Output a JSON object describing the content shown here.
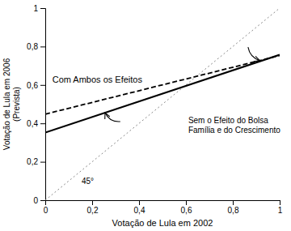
{
  "chart_data": {
    "type": "line",
    "xlabel": "Votação de Lula em 2002",
    "ylabel": "Votação de Lula em 2006\n(Prevista)",
    "x": [
      0,
      1
    ],
    "series": [
      {
        "color": "#888888",
        "line_style": "dotted",
        "values": [
          0,
          1
        ]
      },
      {
        "color": "black",
        "line_style": "dashed",
        "values": [
          0.448,
          0.753
        ]
      },
      {
        "color": "black",
        "line_style": "solid",
        "values": [
          0.352,
          0.757
        ]
      }
    ],
    "annotations": [
      "Com Ambos os Efeitos",
      "Sem o Efeito do Bolsa\nFamília e do Crescimento",
      "45°"
    ],
    "xlim": [
      0,
      1
    ],
    "ylim": [
      0,
      1
    ],
    "xticks": [
      0,
      {
        "value": 0.2,
        "label": "0,2"
      },
      {
        "value": 0.4,
        "label": "0,4"
      },
      {
        "value": 0.6,
        "label": "0,6"
      },
      {
        "value": 0.8,
        "label": "0,8"
      },
      1
    ],
    "yticks": [
      0,
      {
        "value": 0.2,
        "label": "0,2"
      },
      {
        "value": 0.4,
        "label": "0,4"
      },
      {
        "value": 0.6,
        "label": "0,6"
      },
      {
        "value": 0.8,
        "label": "0,8"
      },
      1
    ],
    "grid": false
  }
}
